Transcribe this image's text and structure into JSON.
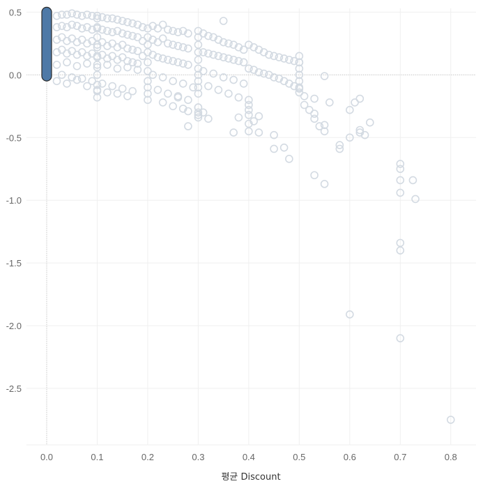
{
  "chart_data": {
    "type": "scatter",
    "title": "",
    "xlabel": "평균 Discount",
    "ylabel": "",
    "xlim": [
      -0.04,
      0.85
    ],
    "ylim": [
      -2.95,
      0.53
    ],
    "x_ticks": [
      "0.0",
      "0.1",
      "0.2",
      "0.3",
      "0.4",
      "0.5",
      "0.6",
      "0.7",
      "0.8"
    ],
    "y_ticks": [
      "0.5",
      "0.0",
      "-0.5",
      "-1.0",
      "-1.5",
      "-2.0",
      "-2.5"
    ],
    "grid": true,
    "legend": "none",
    "colors": {
      "point": "#d3dae2",
      "highlight_fill": "#4e79a7",
      "highlight_stroke": "#2b2b2b",
      "grid": "#efefef",
      "zero_line": "#c8c8c8"
    },
    "highlight": {
      "x": 0.0,
      "y_min": -0.01,
      "y_max": 0.5
    },
    "series": [
      {
        "x": [
          0.02,
          0.03,
          0.04,
          0.05,
          0.06,
          0.07,
          0.08,
          0.09,
          0.1,
          0.11,
          0.12,
          0.13,
          0.14,
          0.15,
          0.16,
          0.17,
          0.18,
          0.02,
          0.03,
          0.04,
          0.05,
          0.06,
          0.07,
          0.08,
          0.09,
          0.1,
          0.11,
          0.12,
          0.13,
          0.14,
          0.15,
          0.16,
          0.17,
          0.18,
          0.02,
          0.03,
          0.04,
          0.05,
          0.06,
          0.07,
          0.08,
          0.09,
          0.1,
          0.11,
          0.12,
          0.13,
          0.14,
          0.15,
          0.16,
          0.17,
          0.18,
          0.02,
          0.03,
          0.04,
          0.05,
          0.06,
          0.07,
          0.08,
          0.09,
          0.1,
          0.11,
          0.12,
          0.13,
          0.14,
          0.15,
          0.16,
          0.17,
          0.18,
          0.02,
          0.04,
          0.06,
          0.08,
          0.1,
          0.12,
          0.14,
          0.16,
          0.18,
          0.03,
          0.05,
          0.07,
          0.09,
          0.11,
          0.13,
          0.15,
          0.17,
          0.02,
          0.04,
          0.06,
          0.08,
          0.1,
          0.12,
          0.14,
          0.16,
          0.1,
          0.1,
          0.1,
          0.1,
          0.1,
          0.1,
          0.1,
          0.1,
          0.1,
          0.1,
          0.2,
          0.2,
          0.2,
          0.2,
          0.2,
          0.2,
          0.2,
          0.2,
          0.2,
          0.2,
          0.3,
          0.3,
          0.3,
          0.3,
          0.3,
          0.3,
          0.3,
          0.3,
          0.3,
          0.3,
          0.3,
          0.3,
          0.3,
          0.19,
          0.21,
          0.22,
          0.23,
          0.24,
          0.25,
          0.26,
          0.27,
          0.28,
          0.19,
          0.21,
          0.22,
          0.23,
          0.24,
          0.25,
          0.26,
          0.27,
          0.28,
          0.19,
          0.21,
          0.22,
          0.23,
          0.24,
          0.25,
          0.26,
          0.27,
          0.28,
          0.21,
          0.23,
          0.25,
          0.27,
          0.29,
          0.22,
          0.24,
          0.26,
          0.28,
          0.23,
          0.25,
          0.27,
          0.28,
          0.26,
          0.28,
          0.31,
          0.32,
          0.33,
          0.34,
          0.35,
          0.36,
          0.37,
          0.38,
          0.39,
          0.31,
          0.32,
          0.33,
          0.34,
          0.35,
          0.36,
          0.37,
          0.38,
          0.39,
          0.31,
          0.33,
          0.35,
          0.37,
          0.39,
          0.32,
          0.34,
          0.36,
          0.38,
          0.31,
          0.3,
          0.3,
          0.32,
          0.35,
          0.37,
          0.38,
          0.4,
          0.41,
          0.42,
          0.43,
          0.44,
          0.45,
          0.46,
          0.47,
          0.48,
          0.49,
          0.5,
          0.4,
          0.41,
          0.42,
          0.43,
          0.44,
          0.45,
          0.46,
          0.47,
          0.48,
          0.49,
          0.5,
          0.4,
          0.4,
          0.4,
          0.4,
          0.4,
          0.41,
          0.42,
          0.42,
          0.4,
          0.5,
          0.5,
          0.5,
          0.5,
          0.5,
          0.5,
          0.5,
          0.51,
          0.51,
          0.52,
          0.53,
          0.53,
          0.53,
          0.54,
          0.55,
          0.55,
          0.56,
          0.55,
          0.45,
          0.45,
          0.47,
          0.48,
          0.53,
          0.55,
          0.58,
          0.58,
          0.6,
          0.61,
          0.62,
          0.62,
          0.63,
          0.64,
          0.6,
          0.62,
          0.7,
          0.7,
          0.7,
          0.7,
          0.725,
          0.73,
          0.7,
          0.7,
          0.6,
          0.7,
          0.8
        ],
        "y": [
          0.47,
          0.48,
          0.48,
          0.49,
          0.48,
          0.47,
          0.48,
          0.47,
          0.47,
          0.46,
          0.45,
          0.45,
          0.44,
          0.43,
          0.42,
          0.41,
          0.4,
          0.38,
          0.39,
          0.38,
          0.4,
          0.39,
          0.37,
          0.38,
          0.36,
          0.37,
          0.36,
          0.35,
          0.34,
          0.35,
          0.33,
          0.32,
          0.31,
          0.3,
          0.28,
          0.3,
          0.27,
          0.29,
          0.26,
          0.28,
          0.25,
          0.27,
          0.24,
          0.26,
          0.23,
          0.25,
          0.22,
          0.24,
          0.21,
          0.2,
          0.19,
          0.18,
          0.2,
          0.17,
          0.19,
          0.16,
          0.18,
          0.15,
          0.17,
          0.14,
          0.16,
          0.13,
          0.15,
          0.12,
          0.14,
          0.11,
          0.1,
          0.09,
          0.08,
          0.1,
          0.07,
          0.09,
          0.06,
          0.08,
          0.05,
          0.06,
          0.04,
          0.0,
          -0.02,
          -0.03,
          -0.05,
          -0.07,
          -0.09,
          -0.11,
          -0.13,
          -0.05,
          -0.07,
          -0.04,
          -0.09,
          -0.12,
          -0.14,
          -0.15,
          -0.17,
          0.45,
          0.38,
          0.3,
          0.22,
          0.15,
          0.08,
          0.0,
          -0.08,
          -0.13,
          -0.18,
          0.37,
          0.3,
          0.24,
          0.18,
          0.1,
          0.03,
          -0.05,
          -0.1,
          -0.15,
          -0.2,
          0.35,
          0.3,
          0.24,
          0.18,
          0.12,
          0.05,
          0.0,
          -0.05,
          -0.1,
          -0.15,
          -0.26,
          -0.3,
          -0.34,
          0.38,
          0.39,
          0.37,
          0.4,
          0.36,
          0.35,
          0.34,
          0.35,
          0.33,
          0.27,
          0.28,
          0.26,
          0.29,
          0.25,
          0.24,
          0.23,
          0.22,
          0.21,
          0.15,
          0.16,
          0.14,
          0.13,
          0.12,
          0.11,
          0.1,
          0.09,
          0.08,
          0.0,
          -0.02,
          -0.05,
          -0.07,
          -0.1,
          -0.12,
          -0.15,
          -0.18,
          -0.2,
          -0.22,
          -0.25,
          -0.27,
          -0.29,
          -0.17,
          -0.41,
          0.33,
          0.31,
          0.3,
          0.28,
          0.26,
          0.25,
          0.24,
          0.22,
          0.2,
          0.18,
          0.17,
          0.16,
          0.15,
          0.14,
          0.13,
          0.12,
          0.11,
          0.1,
          0.03,
          0.01,
          -0.02,
          -0.04,
          -0.07,
          -0.09,
          -0.12,
          -0.15,
          -0.18,
          -0.3,
          -0.26,
          -0.32,
          -0.35,
          0.43,
          -0.46,
          -0.34,
          0.24,
          0.22,
          0.2,
          0.18,
          0.16,
          0.15,
          0.14,
          0.13,
          0.12,
          0.11,
          0.1,
          0.05,
          0.04,
          0.02,
          0.01,
          0.0,
          -0.02,
          -0.03,
          -0.05,
          -0.07,
          -0.09,
          -0.11,
          -0.2,
          -0.24,
          -0.28,
          -0.32,
          -0.39,
          -0.37,
          -0.33,
          -0.46,
          -0.45,
          0.15,
          0.1,
          0.05,
          0.0,
          -0.05,
          -0.1,
          -0.14,
          -0.17,
          -0.24,
          -0.28,
          -0.19,
          -0.31,
          -0.35,
          -0.41,
          -0.01,
          -0.45,
          -0.22,
          -0.4,
          -0.59,
          -0.48,
          -0.58,
          -0.67,
          -0.8,
          -0.87,
          -0.56,
          -0.59,
          -0.5,
          -0.22,
          -0.19,
          -0.44,
          -0.48,
          -0.38,
          -0.28,
          -0.46,
          -0.71,
          -0.75,
          -0.84,
          -0.94,
          -0.84,
          -0.99,
          -1.34,
          -1.4,
          -1.91,
          -2.1,
          -2.75
        ]
      }
    ]
  }
}
